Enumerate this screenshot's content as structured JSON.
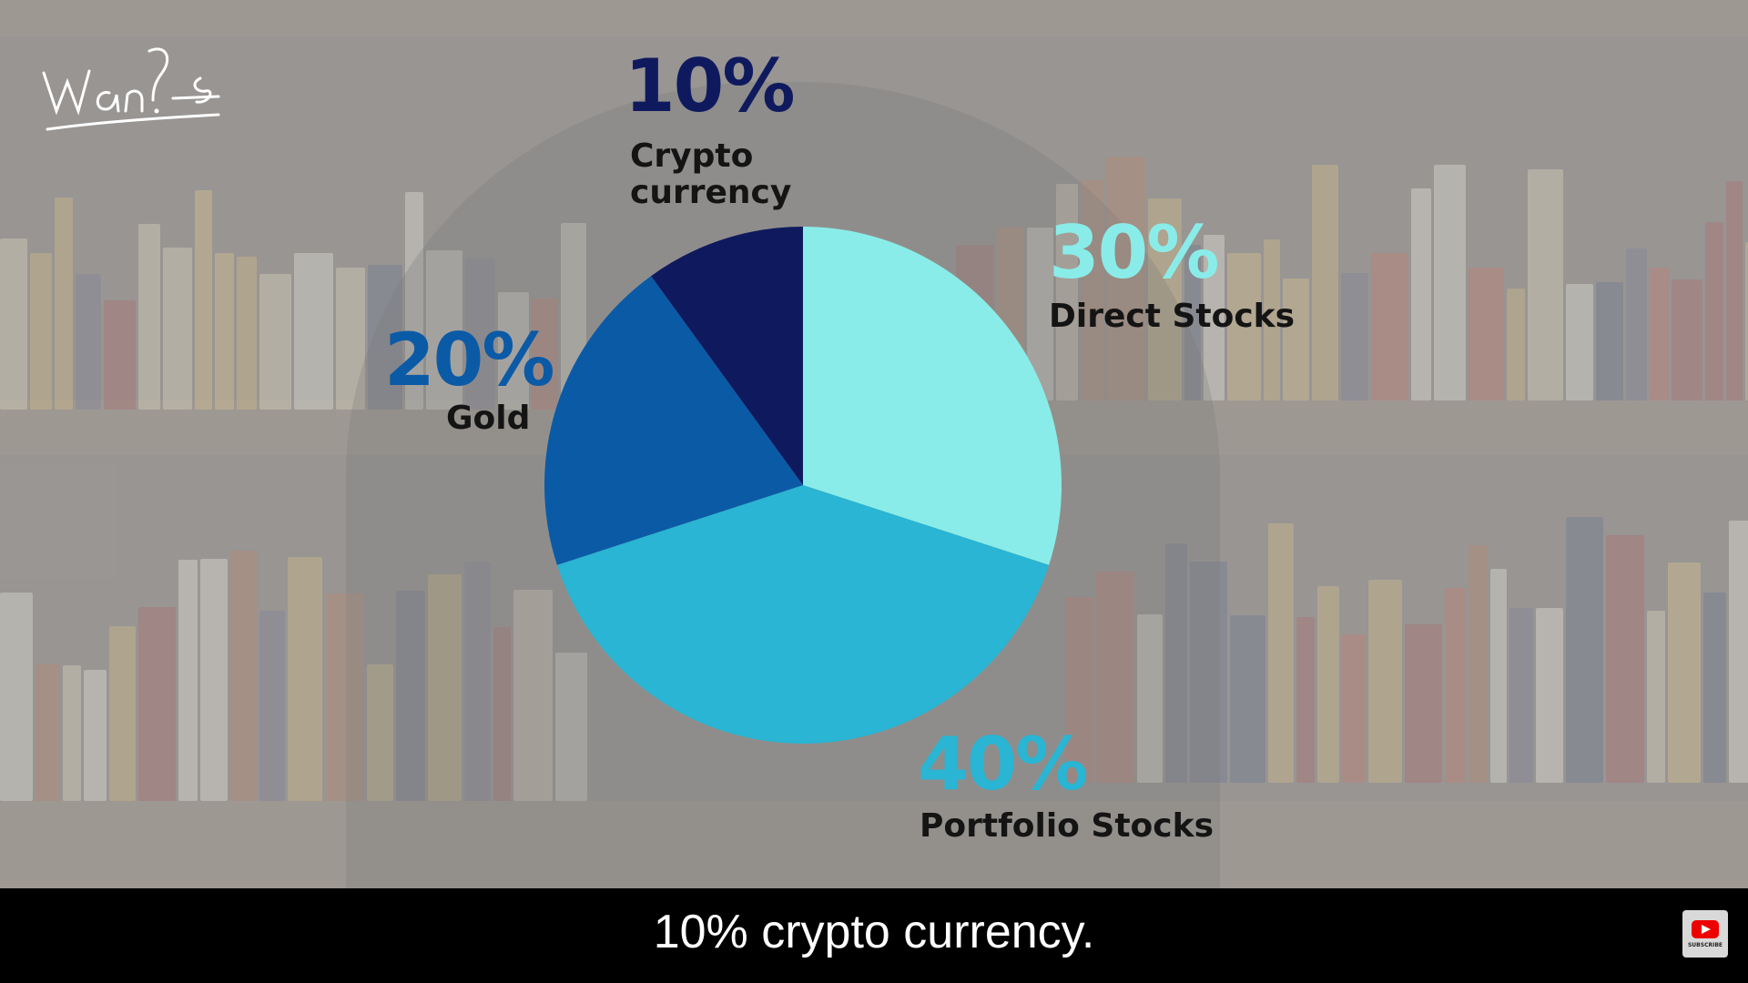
{
  "video": {
    "caption": "10% crypto currency.",
    "subscribe_label": "SUBSCRIBE",
    "logo": "Wan",
    "icons": [
      "signature-logo-icon",
      "youtube-play-icon"
    ]
  },
  "colors": {
    "crypto": "#0f1a5e",
    "gold": "#0b5aa6",
    "portfolio": "#29b5d3",
    "direct": "#8aece8",
    "caption_bg": "#000000",
    "caption_text": "#ffffff"
  },
  "chart_data": {
    "type": "pie",
    "title": "",
    "start_angle": 0,
    "direction": "clockwise",
    "slices": [
      {
        "label": "Direct Stocks",
        "value": 30,
        "value_label": "30%"
      },
      {
        "label": "Portfolio Stocks",
        "value": 40,
        "value_label": "40%"
      },
      {
        "label": "Gold",
        "value": 20,
        "value_label": "20%"
      },
      {
        "label": "Crypto\ncurrency",
        "value": 10,
        "value_label": "10%"
      }
    ]
  }
}
